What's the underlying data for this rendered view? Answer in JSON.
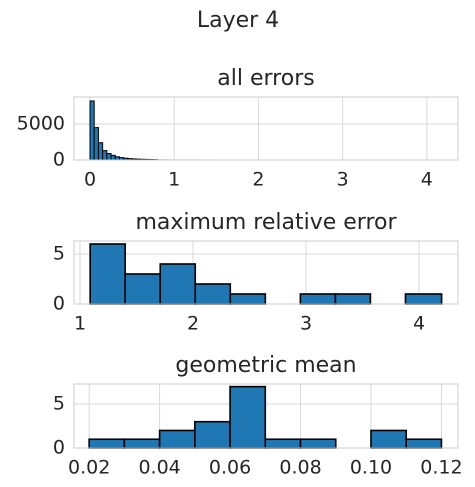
{
  "title": "Layer 4",
  "chart_data": [
    {
      "type": "histogram",
      "title": "all errors",
      "color": "#1f77b4",
      "edgecolor": "#000000",
      "grid": true,
      "bins": [
        0,
        0.05,
        0.1,
        0.15,
        0.2,
        0.25,
        0.3,
        0.35,
        0.4,
        0.45,
        0.5,
        0.55,
        0.6,
        0.65,
        0.7,
        0.75,
        0.8,
        0.85,
        0.9,
        0.95,
        1,
        1.05,
        1.1,
        1.15,
        1.2,
        1.25,
        1.3,
        1.35,
        1.4,
        1.45,
        1.5,
        1.55,
        1.6,
        1.65,
        1.7,
        1.75,
        1.8,
        1.85,
        1.9,
        1.95,
        2,
        2.05,
        2.1,
        2.15,
        2.2,
        2.25,
        2.3,
        2.35,
        2.4,
        2.45,
        2.5,
        2.55,
        2.6,
        2.65,
        2.7,
        2.75,
        2.8,
        2.85,
        2.9,
        2.95,
        3,
        3.05,
        3.1,
        3.15,
        3.2,
        3.25,
        3.3,
        3.35,
        3.4,
        3.45,
        3.5,
        3.55,
        3.6,
        3.65,
        3.7,
        3.75,
        3.8,
        3.85,
        3.9,
        3.95,
        4,
        4.05,
        4.1,
        4.15,
        4.2
      ],
      "values": [
        8200,
        4500,
        2400,
        1300,
        900,
        650,
        450,
        330,
        250,
        190,
        150,
        120,
        100,
        80,
        60,
        45,
        12,
        9,
        7,
        5,
        4,
        3,
        3,
        2,
        2,
        2,
        1,
        1,
        1,
        1,
        1,
        0,
        1,
        0,
        1,
        0,
        0,
        1,
        0,
        0,
        1,
        0,
        0,
        0,
        1,
        0,
        0,
        0,
        1,
        0,
        0,
        0,
        0,
        1,
        0,
        0,
        0,
        0,
        0,
        1,
        0,
        0,
        0,
        0,
        0,
        0,
        0,
        1,
        0,
        0,
        0,
        0,
        0,
        0,
        0,
        0,
        0,
        0,
        0,
        0,
        0,
        0,
        0,
        1
      ],
      "xlim": [
        -0.19,
        4.37
      ],
      "xticks": [
        0,
        1,
        2,
        3,
        4
      ],
      "ylim": [
        0,
        8750
      ],
      "yticks": [
        0,
        5000
      ]
    },
    {
      "type": "histogram",
      "title": "maximum relative error",
      "color": "#1f77b4",
      "edgecolor": "#000000",
      "grid": true,
      "bins": [
        1.09,
        1.4,
        1.71,
        2.02,
        2.33,
        2.64,
        2.95,
        3.26,
        3.57,
        3.88,
        4.2
      ],
      "values": [
        6,
        3,
        4,
        2,
        1,
        0,
        1,
        1,
        0,
        1
      ],
      "xlim": [
        0.947,
        4.345
      ],
      "xticks": [
        1,
        2,
        3,
        4
      ],
      "ylim": [
        0,
        6.3
      ],
      "yticks": [
        0,
        5
      ]
    },
    {
      "type": "histogram",
      "title": "geometric mean",
      "color": "#1f77b4",
      "edgecolor": "#000000",
      "grid": true,
      "bins": [
        0.02,
        0.03,
        0.04,
        0.05,
        0.06,
        0.07,
        0.08,
        0.09,
        0.1,
        0.11,
        0.12
      ],
      "values": [
        1,
        1,
        2,
        3,
        7,
        1,
        1,
        0,
        2,
        1
      ],
      "xlim": [
        0.0157,
        0.1247
      ],
      "xticks": [
        0.02,
        0.04,
        0.06,
        0.08,
        {
          "value": 0.1,
          "label": "0.10"
        },
        0.12
      ],
      "ylim": [
        0,
        7.3
      ],
      "yticks": [
        0,
        5
      ]
    }
  ]
}
